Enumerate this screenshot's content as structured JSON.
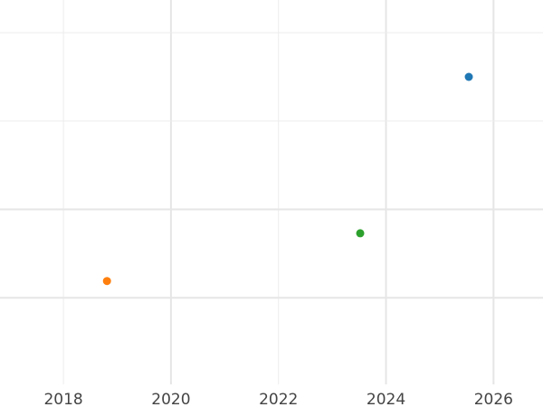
{
  "chart_data": {
    "type": "scatter",
    "title": "",
    "xlabel": "",
    "ylabel": "",
    "xlim": [
      2016.82,
      2026.92
    ],
    "ylim": [
      0.02,
      4.37
    ],
    "x_ticks": [
      2018,
      2020,
      2022,
      2024,
      2026
    ],
    "x_tick_labels": [
      "2018",
      "2020",
      "2022",
      "2024",
      "2026"
    ],
    "x_minor_gridlines": [
      2018,
      2022
    ],
    "x_major_gridlines": [
      2020,
      2024,
      2026
    ],
    "y_gridlines": [
      1,
      2,
      3,
      4
    ],
    "y_major_gridlines": [
      1,
      2
    ],
    "y_tick_labels_shown": false,
    "grid": true,
    "legend": "none",
    "points": [
      {
        "x": 2025.54,
        "y": 3.5,
        "color": "#1f77b4"
      },
      {
        "x": 2018.81,
        "y": 1.19,
        "color": "#ff7f0e"
      },
      {
        "x": 2023.52,
        "y": 1.73,
        "color": "#2ca02c"
      }
    ]
  }
}
